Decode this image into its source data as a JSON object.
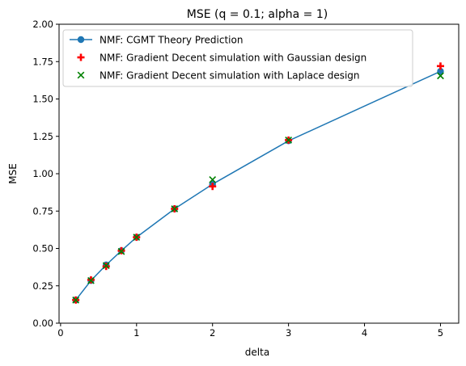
{
  "chart_data": {
    "type": "line",
    "title": "MSE (q = 0.1; alpha = 1)",
    "xlabel": "delta",
    "ylabel": "MSE",
    "xlim": [
      -0.02,
      5.24
    ],
    "ylim": [
      0.0,
      2.0
    ],
    "xticks": [
      0,
      1,
      2,
      3,
      4,
      5
    ],
    "xtick_labels": [
      "0",
      "1",
      "2",
      "3",
      "4",
      "5"
    ],
    "yticks": [
      0.0,
      0.25,
      0.5,
      0.75,
      1.0,
      1.25,
      1.5,
      1.75,
      2.0
    ],
    "ytick_labels": [
      "0.00",
      "0.25",
      "0.50",
      "0.75",
      "1.00",
      "1.25",
      "1.50",
      "1.75",
      "2.00"
    ],
    "grid": false,
    "legend_position": "top-left",
    "series": [
      {
        "name": "NMF: CGMT Theory Prediction",
        "kind": "line-with-circles",
        "color": "#1f77b4",
        "x": [
          0.2,
          0.4,
          0.6,
          0.8,
          1.0,
          1.5,
          2.0,
          3.0,
          5.0
        ],
        "y": [
          0.155,
          0.285,
          0.39,
          0.485,
          0.575,
          0.765,
          0.93,
          1.22,
          1.685
        ]
      },
      {
        "name": "NMF: Gradient Decent simulation with Gaussian design",
        "kind": "scatter-plus",
        "color": "#ff0000",
        "x": [
          0.2,
          0.4,
          0.6,
          0.8,
          1.0,
          1.5,
          2.0,
          3.0,
          5.0
        ],
        "y": [
          0.155,
          0.29,
          0.38,
          0.485,
          0.575,
          0.765,
          0.915,
          1.225,
          1.72
        ]
      },
      {
        "name": "NMF: Gradient Decent simulation with Laplace design",
        "kind": "scatter-x",
        "color": "#008000",
        "x": [
          0.2,
          0.4,
          0.6,
          0.8,
          1.0,
          1.5,
          2.0,
          3.0,
          5.0
        ],
        "y": [
          0.155,
          0.285,
          0.385,
          0.48,
          0.575,
          0.765,
          0.96,
          1.225,
          1.655
        ]
      }
    ]
  }
}
